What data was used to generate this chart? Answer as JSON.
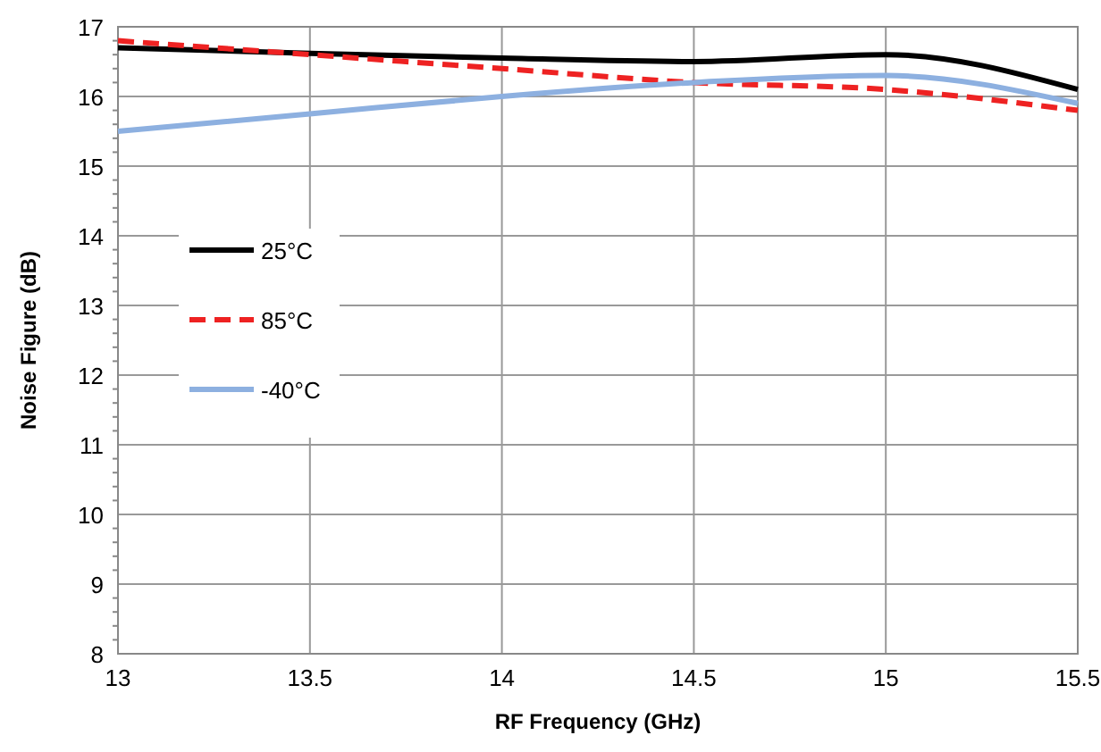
{
  "chart_data": {
    "type": "line",
    "xlabel": "RF Frequency (GHz)",
    "ylabel": "Noise Figure (dB)",
    "x": [
      13,
      13.5,
      14,
      14.5,
      15,
      15.5
    ],
    "series": [
      {
        "name": "25°C",
        "color": "#000000",
        "values": [
          16.7,
          16.62,
          16.55,
          16.5,
          16.6,
          16.1
        ],
        "line_style": "solid"
      },
      {
        "name": "85°C",
        "color": "#ee2222",
        "values": [
          16.8,
          16.6,
          16.4,
          16.2,
          16.1,
          15.8
        ],
        "line_style": "dashed"
      },
      {
        "name": "-40°C",
        "color": "#8db0e0",
        "values": [
          15.5,
          15.75,
          16.0,
          16.2,
          16.3,
          15.9
        ],
        "line_style": "solid"
      }
    ],
    "xlim": [
      13,
      15.5
    ],
    "xticks": [
      13,
      13.5,
      14,
      14.5,
      15,
      15.5
    ],
    "ylim": [
      8,
      17
    ],
    "yticks": [
      8,
      9,
      10,
      11,
      12,
      13,
      14,
      15,
      16,
      17
    ],
    "grid": true,
    "legend": "left",
    "marker": "none"
  }
}
